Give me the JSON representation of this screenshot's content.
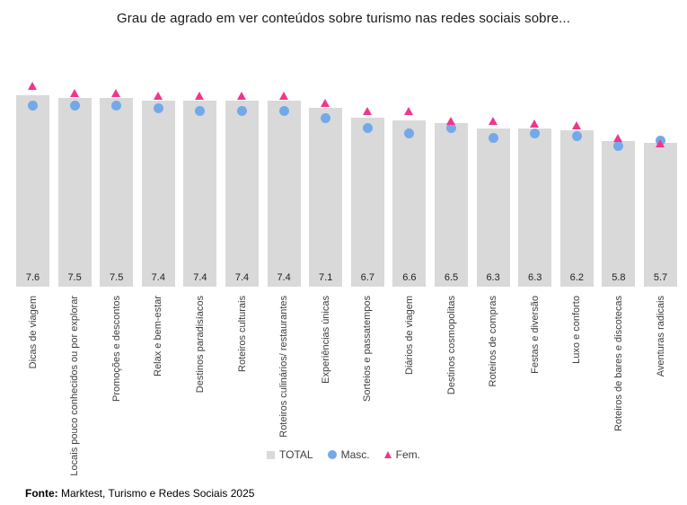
{
  "title": "Grau de agrado em ver conteúdos sobre turismo nas redes sociais sobre...",
  "chart_data": {
    "type": "bar",
    "title": "Grau de agrado em ver conteúdos sobre turismo nas redes sociais sobre...",
    "categories": [
      "Dicas de viagem",
      "Locais pouco conhecidos ou por explorar",
      "Promoções e descontos",
      "Relax e bem-estar",
      "Destinos paradisíacos",
      "Roteiros culturais",
      "Roteiros culinários/ restaurantes",
      "Experiências únicas",
      "Sorteios e passatempos",
      "Diários de viagem",
      "Destinos cosmopolitas",
      "Roteiros de compras",
      "Festas e diversão",
      "Luxo e conforto",
      "Roteiros de bares e discotecas",
      "Aventuras radicais"
    ],
    "series": [
      {
        "name": "TOTAL",
        "type": "bar",
        "color": "#d9d9d9",
        "values": [
          7.6,
          7.5,
          7.5,
          7.4,
          7.4,
          7.4,
          7.4,
          7.1,
          6.7,
          6.6,
          6.5,
          6.3,
          6.3,
          6.2,
          5.8,
          5.7
        ]
      },
      {
        "name": "Masc.",
        "type": "scatter",
        "marker": "circle",
        "color": "#73a9e9",
        "values": [
          7.2,
          7.2,
          7.2,
          7.1,
          7.0,
          7.0,
          7.0,
          6.7,
          6.3,
          6.1,
          6.3,
          5.9,
          6.1,
          6.0,
          5.6,
          5.8
        ]
      },
      {
        "name": "Fem.",
        "type": "scatter",
        "marker": "triangle",
        "color": "#f0368c",
        "values": [
          8.0,
          7.7,
          7.7,
          7.6,
          7.6,
          7.6,
          7.6,
          7.3,
          7.0,
          7.0,
          6.6,
          6.6,
          6.5,
          6.4,
          5.9,
          5.7
        ]
      }
    ],
    "bar_value_labels": [
      "7.6",
      "7.5",
      "7.5",
      "7.4",
      "7.4",
      "7.4",
      "7.4",
      "7.1",
      "6.7",
      "6.6",
      "6.5",
      "6.3",
      "6.3",
      "6.2",
      "5.8",
      "5.7"
    ],
    "xlabel": "",
    "ylabel": "",
    "ylim": [
      0,
      8.5
    ],
    "grid": false,
    "axis_labels_rotated": true,
    "legend_position": "bottom"
  },
  "legend": {
    "items": [
      {
        "label": "TOTAL",
        "marker": "square",
        "color": "#d9d9d9"
      },
      {
        "label": "Masc.",
        "marker": "circle",
        "color": "#73a9e9"
      },
      {
        "label": "Fem.",
        "marker": "triangle",
        "color": "#f0368c"
      }
    ]
  },
  "footer": {
    "prefix": "Fonte:",
    "text": " Marktest, Turismo e Redes Sociais 2025"
  },
  "colors": {
    "total_bar": "#d9d9d9",
    "masc": "#73a9e9",
    "fem": "#f0368c",
    "background": "#ffffff"
  }
}
